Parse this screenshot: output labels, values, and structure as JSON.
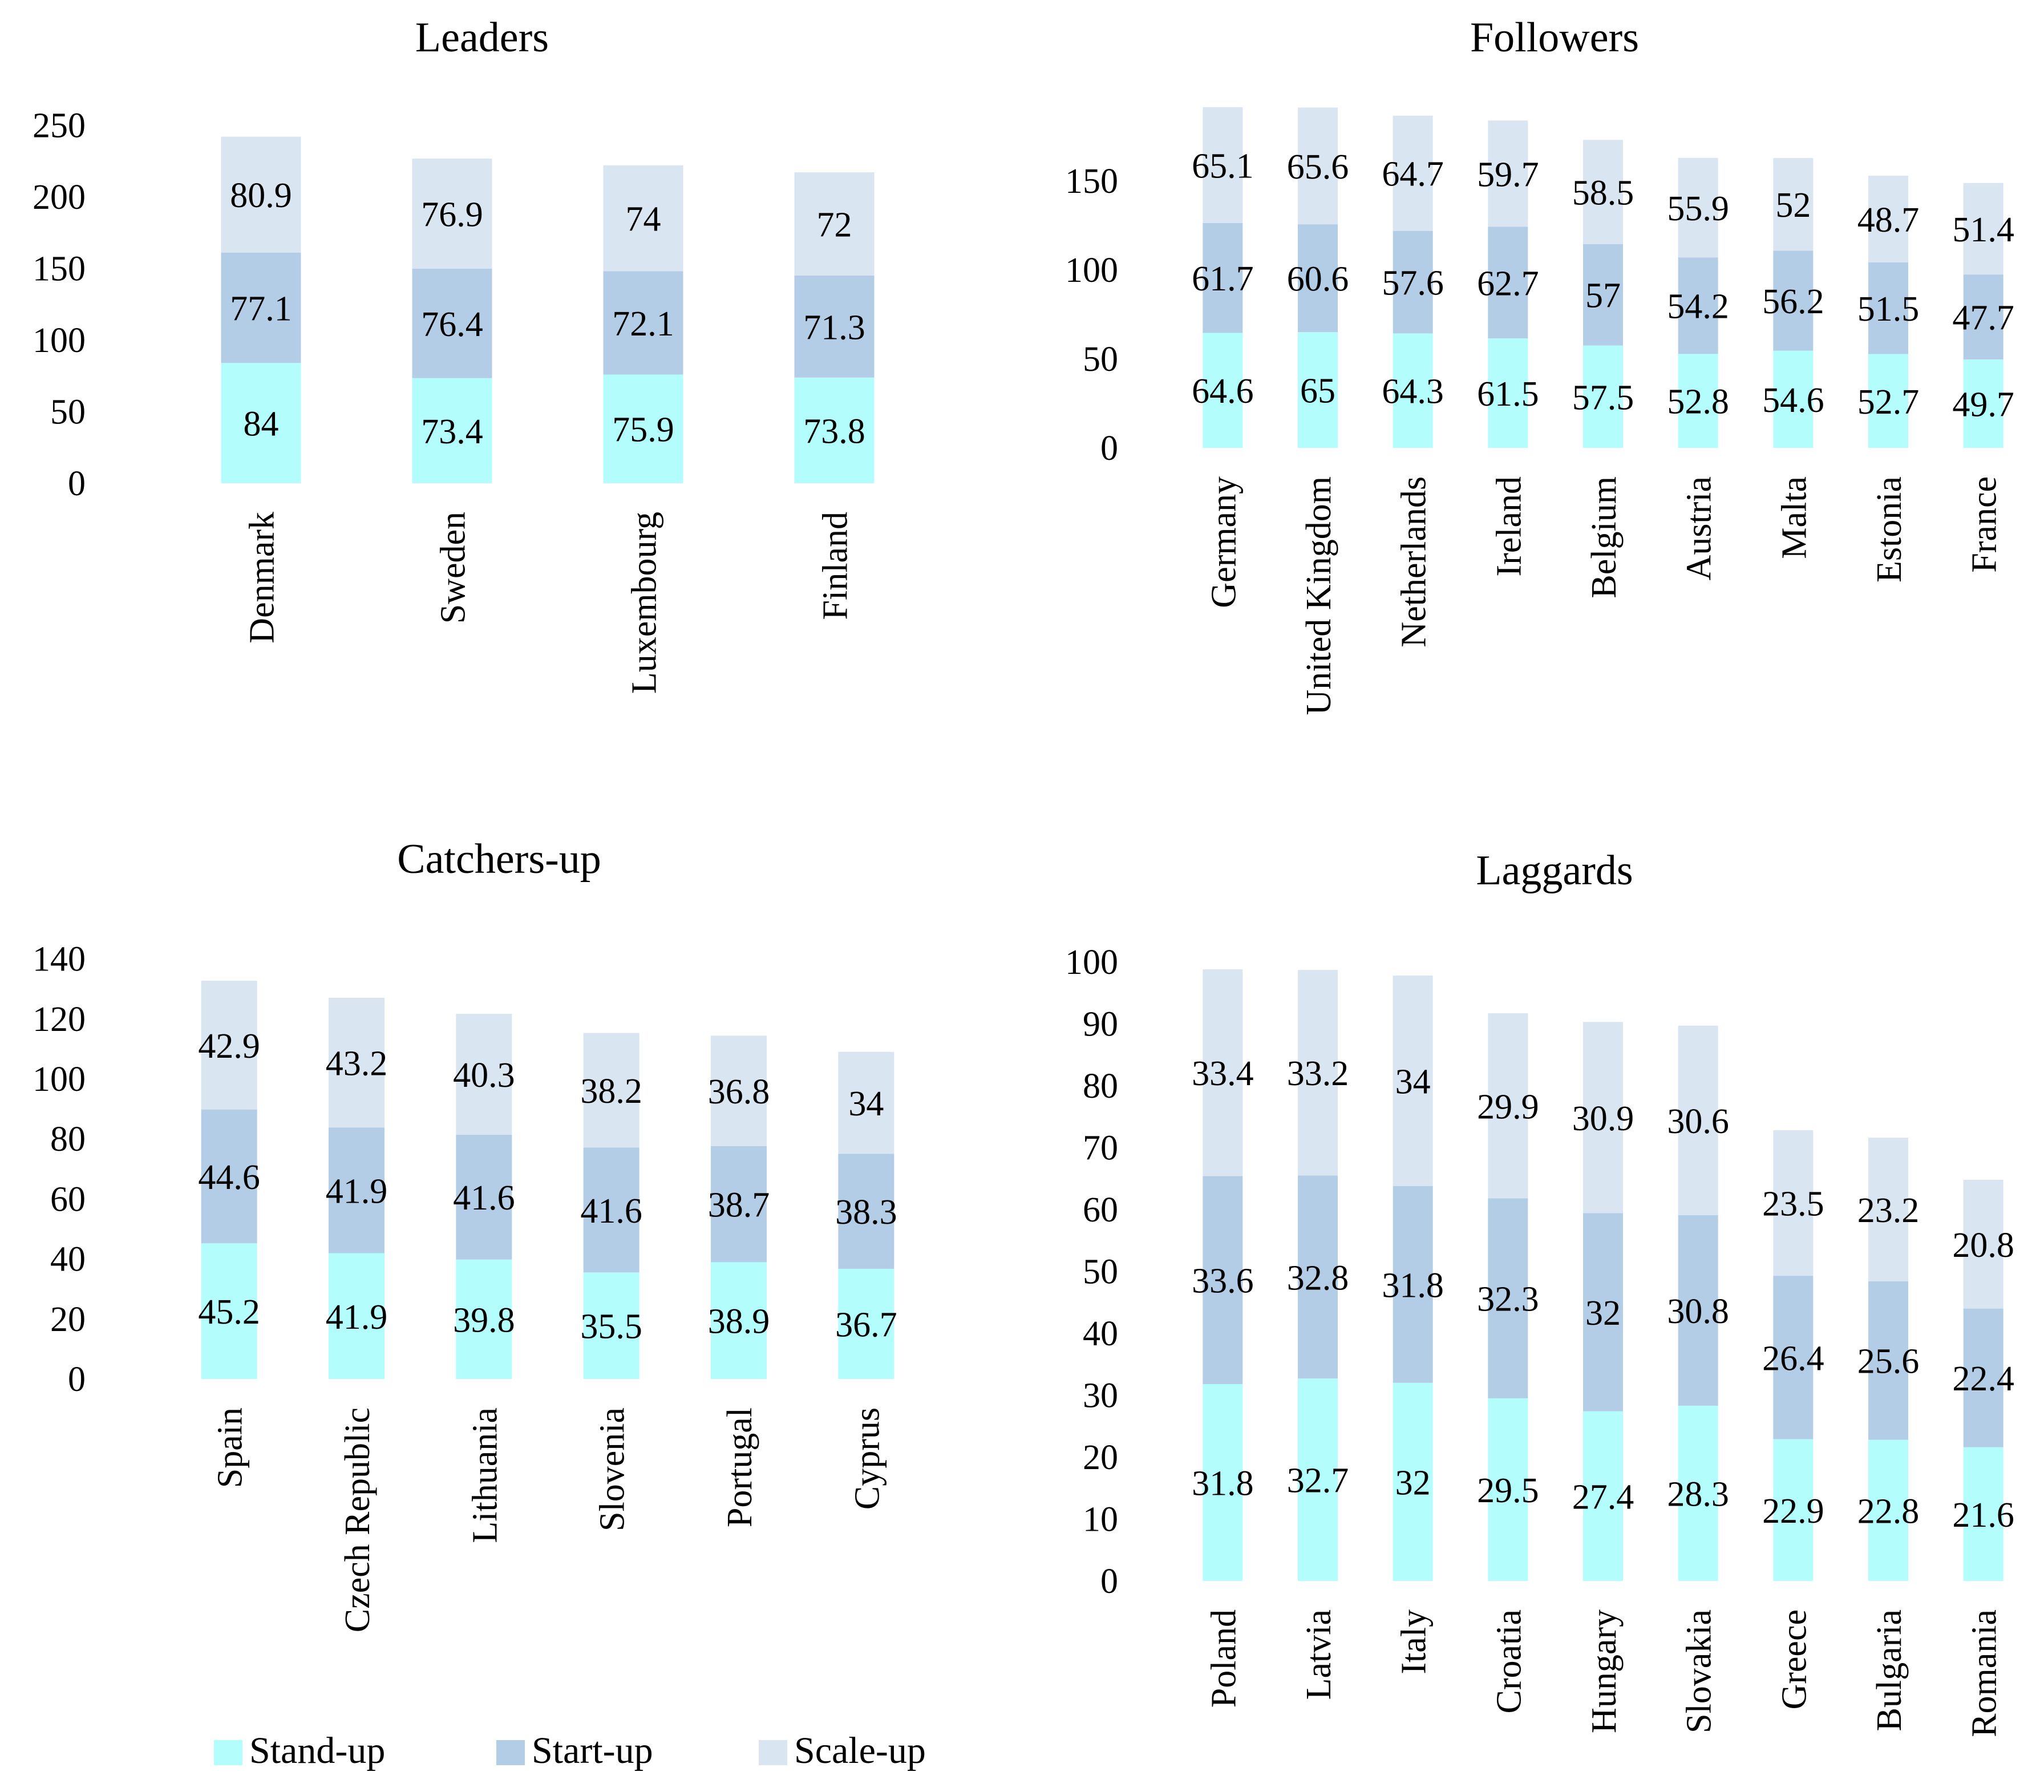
{
  "colors": {
    "stand_up": "#b3fdfd",
    "start_up": "#b3cde6",
    "scale_up": "#d9e5f1"
  },
  "legend": [
    {
      "key": "stand_up",
      "label": "Stand-up"
    },
    {
      "key": "start_up",
      "label": "Start-up"
    },
    {
      "key": "scale_up",
      "label": "Scale-up"
    }
  ],
  "chart_data": [
    {
      "type": "bar",
      "stacked": true,
      "title": "Leaders",
      "ylim": [
        0,
        250
      ],
      "yticks": [
        0,
        50,
        100,
        150,
        200,
        250
      ],
      "categories": [
        "Denmark",
        "Sweden",
        "Luxembourg",
        "Finland"
      ],
      "series": [
        {
          "name": "Stand-up",
          "values": [
            84,
            73.4,
            75.9,
            73.8
          ]
        },
        {
          "name": "Start-up",
          "values": [
            77.1,
            76.4,
            72.1,
            71.3
          ]
        },
        {
          "name": "Scale-up",
          "values": [
            80.9,
            76.9,
            74,
            72
          ]
        }
      ]
    },
    {
      "type": "bar",
      "stacked": true,
      "title": "Followers",
      "ylim": [
        0,
        180
      ],
      "yticks": [
        0,
        50,
        100,
        150
      ],
      "categories": [
        "Germany",
        "United Kingdom",
        "Netherlands",
        "Ireland",
        "Belgium",
        "Austria",
        "Malta",
        "Estonia",
        "France"
      ],
      "series": [
        {
          "name": "Stand-up",
          "values": [
            64.6,
            65,
            64.3,
            61.5,
            57.5,
            52.8,
            54.6,
            52.7,
            49.7
          ]
        },
        {
          "name": "Start-up",
          "values": [
            61.7,
            60.6,
            57.6,
            62.7,
            57,
            54.2,
            56.2,
            51.5,
            47.7
          ]
        },
        {
          "name": "Scale-up",
          "values": [
            65.1,
            65.6,
            64.7,
            59.7,
            58.5,
            55.9,
            52,
            48.7,
            51.4
          ]
        }
      ]
    },
    {
      "type": "bar",
      "stacked": true,
      "title": "Catchers-up",
      "ylim": [
        0,
        140
      ],
      "yticks": [
        0,
        20,
        40,
        60,
        80,
        100,
        120,
        140
      ],
      "categories": [
        "Spain",
        "Czech Republic",
        "Lithuania",
        "Slovenia",
        "Portugal",
        "Cyprus"
      ],
      "series": [
        {
          "name": "Stand-up",
          "values": [
            45.2,
            41.9,
            39.8,
            35.5,
            38.9,
            36.7
          ]
        },
        {
          "name": "Start-up",
          "values": [
            44.6,
            41.9,
            41.6,
            41.6,
            38.7,
            38.3
          ]
        },
        {
          "name": "Scale-up",
          "values": [
            42.9,
            43.2,
            40.3,
            38.2,
            36.8,
            34
          ]
        }
      ]
    },
    {
      "type": "bar",
      "stacked": true,
      "title": "Laggards",
      "ylim": [
        0,
        100
      ],
      "yticks": [
        0,
        10,
        20,
        30,
        40,
        50,
        60,
        70,
        80,
        90,
        100
      ],
      "categories": [
        "Poland",
        "Latvia",
        "Italy",
        "Croatia",
        "Hungary",
        "Slovakia",
        "Greece",
        "Bulgaria",
        "Romania"
      ],
      "series": [
        {
          "name": "Stand-up",
          "values": [
            31.8,
            32.7,
            32,
            29.5,
            27.4,
            28.3,
            22.9,
            22.8,
            21.6
          ]
        },
        {
          "name": "Start-up",
          "values": [
            33.6,
            32.8,
            31.8,
            32.3,
            32,
            30.8,
            26.4,
            25.6,
            22.4
          ]
        },
        {
          "name": "Scale-up",
          "values": [
            33.4,
            33.2,
            34,
            29.9,
            30.9,
            30.6,
            23.5,
            23.2,
            20.8
          ]
        }
      ]
    }
  ]
}
